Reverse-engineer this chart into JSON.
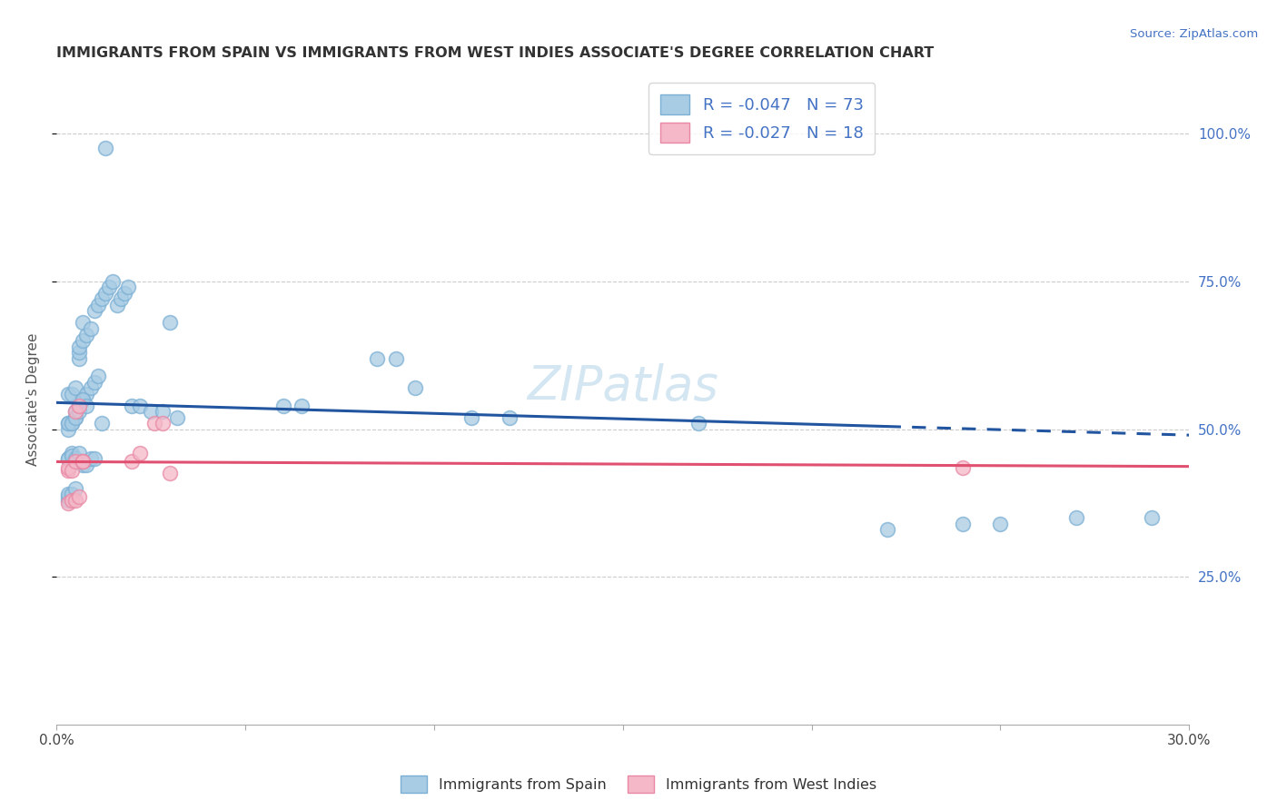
{
  "title": "IMMIGRANTS FROM SPAIN VS IMMIGRANTS FROM WEST INDIES ASSOCIATE'S DEGREE CORRELATION CHART",
  "source": "Source: ZipAtlas.com",
  "ylabel": "Associate's Degree",
  "right_yticks": [
    "100.0%",
    "75.0%",
    "50.0%",
    "25.0%"
  ],
  "right_ytick_vals": [
    1.0,
    0.75,
    0.5,
    0.25
  ],
  "watermark": "ZIPatlas",
  "legend_blue_label": "R = -0.047   N = 73",
  "legend_pink_label": "R = -0.027   N = 18",
  "legend_series1": "Immigrants from Spain",
  "legend_series2": "Immigrants from West Indies",
  "blue_color": "#a8cce4",
  "pink_color": "#f4b8c8",
  "blue_edge_color": "#7bafd4",
  "pink_edge_color": "#e888a4",
  "blue_line_color": "#2255a0",
  "pink_line_color": "#e05070",
  "xlim": [
    0.0,
    0.3
  ],
  "ylim": [
    0.0,
    1.1
  ],
  "blue_scatter_x": [
    0.013,
    0.003,
    0.004,
    0.005,
    0.006,
    0.006,
    0.006,
    0.007,
    0.007,
    0.008,
    0.009,
    0.01,
    0.011,
    0.012,
    0.013,
    0.014,
    0.015,
    0.016,
    0.017,
    0.018,
    0.019,
    0.003,
    0.004,
    0.005,
    0.005,
    0.006,
    0.007,
    0.008,
    0.009,
    0.01,
    0.011,
    0.003,
    0.003,
    0.004,
    0.005,
    0.006,
    0.007,
    0.008,
    0.003,
    0.003,
    0.004,
    0.004,
    0.005,
    0.006,
    0.003,
    0.003,
    0.003,
    0.004,
    0.005,
    0.007,
    0.008,
    0.009,
    0.01,
    0.012,
    0.02,
    0.022,
    0.025,
    0.028,
    0.03,
    0.032,
    0.06,
    0.065,
    0.11,
    0.12,
    0.17,
    0.22,
    0.24,
    0.25,
    0.27,
    0.29,
    0.085,
    0.09,
    0.095
  ],
  "blue_scatter_y": [
    0.975,
    0.56,
    0.56,
    0.57,
    0.62,
    0.63,
    0.64,
    0.65,
    0.68,
    0.66,
    0.67,
    0.7,
    0.71,
    0.72,
    0.73,
    0.74,
    0.75,
    0.71,
    0.72,
    0.73,
    0.74,
    0.51,
    0.51,
    0.52,
    0.53,
    0.54,
    0.55,
    0.56,
    0.57,
    0.58,
    0.59,
    0.5,
    0.51,
    0.51,
    0.52,
    0.53,
    0.55,
    0.54,
    0.45,
    0.45,
    0.46,
    0.455,
    0.45,
    0.46,
    0.38,
    0.385,
    0.39,
    0.39,
    0.4,
    0.44,
    0.44,
    0.45,
    0.45,
    0.51,
    0.54,
    0.54,
    0.53,
    0.53,
    0.68,
    0.52,
    0.54,
    0.54,
    0.52,
    0.52,
    0.51,
    0.33,
    0.34,
    0.34,
    0.35,
    0.35,
    0.62,
    0.62,
    0.57
  ],
  "pink_scatter_x": [
    0.003,
    0.003,
    0.004,
    0.005,
    0.005,
    0.006,
    0.007,
    0.007,
    0.02,
    0.022,
    0.026,
    0.028,
    0.03,
    0.24,
    0.003,
    0.004,
    0.005,
    0.006
  ],
  "pink_scatter_y": [
    0.43,
    0.435,
    0.43,
    0.445,
    0.53,
    0.54,
    0.445,
    0.445,
    0.445,
    0.46,
    0.51,
    0.51,
    0.425,
    0.435,
    0.375,
    0.38,
    0.38,
    0.385
  ],
  "blue_line_x0": 0.0,
  "blue_line_x1": 0.3,
  "blue_line_y0": 0.545,
  "blue_line_y1": 0.49,
  "blue_line_dash_x": 0.22,
  "pink_line_x0": 0.0,
  "pink_line_x1": 0.3,
  "pink_line_y0": 0.445,
  "pink_line_y1": 0.437,
  "grid_yticks": [
    0.25,
    0.5,
    0.75,
    1.0
  ],
  "grid_color": "#cccccc",
  "background_color": "#ffffff"
}
